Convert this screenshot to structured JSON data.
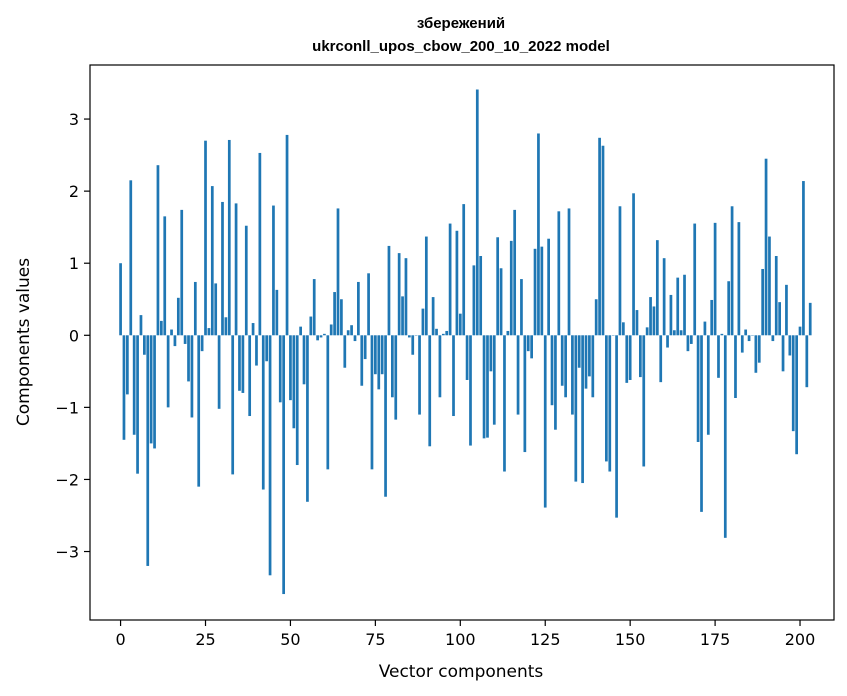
{
  "chart_data": {
    "type": "bar",
    "title_line1": "збережений",
    "title_line2": "ukrconll_upos_cbow_200_10_2022 model",
    "xlabel": "Vector components",
    "ylabel": "Components values",
    "xlim": [
      -9,
      210
    ],
    "ylim": [
      -3.95,
      3.75
    ],
    "xticks": [
      0,
      25,
      50,
      75,
      100,
      125,
      150,
      175,
      200
    ],
    "xtick_labels": [
      "0",
      "25",
      "50",
      "75",
      "100",
      "125",
      "150",
      "175",
      "200"
    ],
    "yticks": [
      -3,
      -2,
      -1,
      0,
      1,
      2,
      3
    ],
    "ytick_labels": [
      "−3",
      "−2",
      "−1",
      "0",
      "1",
      "2",
      "3"
    ],
    "bar_color": "#1f77b4",
    "grid": false,
    "values": [
      1.0,
      -1.45,
      -0.82,
      2.15,
      -1.38,
      -1.92,
      0.28,
      -0.27,
      -3.2,
      -1.5,
      -1.57,
      2.36,
      0.2,
      1.65,
      -1.0,
      0.08,
      -0.15,
      0.52,
      1.74,
      -0.12,
      -0.64,
      -1.14,
      0.74,
      -2.1,
      -0.22,
      2.7,
      0.1,
      2.07,
      0.72,
      -1.02,
      1.85,
      0.25,
      2.71,
      -1.93,
      1.83,
      -0.77,
      -0.8,
      1.52,
      -1.12,
      0.17,
      -0.42,
      2.53,
      -2.14,
      -0.36,
      -3.33,
      1.8,
      0.63,
      -0.93,
      -3.59,
      2.78,
      -0.9,
      -1.29,
      -1.8,
      0.12,
      -0.68,
      -2.31,
      0.26,
      0.78,
      -0.07,
      -0.03,
      0.02,
      -1.86,
      0.15,
      0.6,
      1.76,
      0.5,
      -0.45,
      0.07,
      0.14,
      -0.08,
      0.74,
      -0.7,
      -0.33,
      0.86,
      -1.86,
      -0.54,
      -0.75,
      -0.54,
      -2.24,
      1.24,
      -0.86,
      -1.17,
      1.14,
      0.54,
      1.07,
      -0.03,
      -0.27,
      0.0,
      -1.1,
      0.37,
      1.37,
      -1.54,
      0.53,
      0.09,
      -0.86,
      0.02,
      0.06,
      1.55,
      -1.12,
      1.45,
      0.3,
      1.82,
      -0.62,
      -1.53,
      0.97,
      3.41,
      1.1,
      -1.43,
      -1.42,
      -0.5,
      -1.24,
      1.36,
      0.93,
      -1.89,
      0.06,
      1.31,
      1.74,
      -1.1,
      0.78,
      -1.62,
      -0.22,
      -0.32,
      1.2,
      2.8,
      1.23,
      -2.39,
      1.34,
      -0.97,
      -1.31,
      1.72,
      -0.7,
      -0.86,
      1.76,
      -1.1,
      -2.03,
      -0.45,
      -2.05,
      -0.74,
      -0.57,
      -0.86,
      0.5,
      2.74,
      2.63,
      -1.75,
      -1.89,
      0.0,
      -2.53,
      1.79,
      0.18,
      -0.66,
      -0.62,
      1.97,
      0.35,
      -0.58,
      -1.82,
      0.11,
      0.53,
      0.4,
      1.32,
      -0.65,
      1.07,
      -0.17,
      0.56,
      0.07,
      0.8,
      0.07,
      0.84,
      -0.22,
      -0.12,
      1.55,
      -1.48,
      -2.45,
      0.19,
      -1.38,
      0.49,
      1.56,
      -0.59,
      0.02,
      -2.81,
      0.75,
      1.79,
      -0.87,
      1.57,
      -0.24,
      0.08,
      -0.08,
      0.0,
      -0.52,
      -0.38,
      0.92,
      2.45,
      1.37,
      -0.08,
      1.1,
      0.46,
      -0.5,
      0.7,
      -0.28,
      -1.33,
      -1.65,
      0.12,
      2.14,
      -0.72,
      0.45
    ]
  }
}
